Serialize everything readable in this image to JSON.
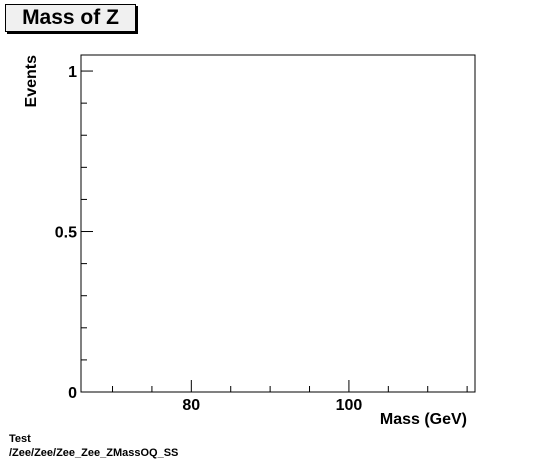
{
  "chart_data": {
    "type": "line",
    "title": "Mass of Z",
    "xlabel": "Mass (GeV)",
    "ylabel": "Events",
    "xlim": [
      66,
      116
    ],
    "ylim": [
      0,
      1.05
    ],
    "x_ticks": [
      80,
      100
    ],
    "x_tick_labels": [
      "80",
      "100"
    ],
    "y_ticks": [
      0,
      0.5,
      1
    ],
    "y_tick_labels": [
      "0",
      "0.5",
      "1"
    ],
    "series": []
  },
  "footer": {
    "line1": "Test",
    "line2": "/Zee/Zee/Zee_Zee_ZMassOQ_SS"
  }
}
